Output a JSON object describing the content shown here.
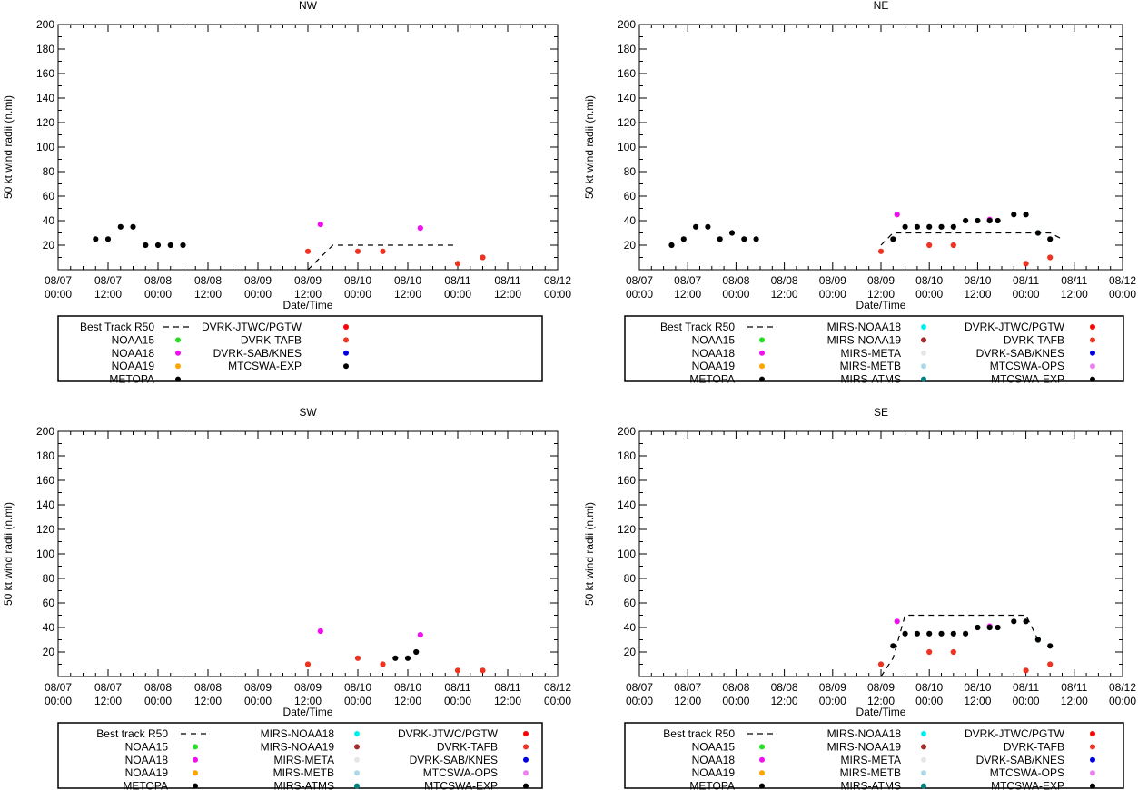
{
  "x_ticks": [
    {
      "date": "08/07",
      "time": "00:00"
    },
    {
      "date": "08/07",
      "time": "12:00"
    },
    {
      "date": "08/08",
      "time": "00:00"
    },
    {
      "date": "08/08",
      "time": "12:00"
    },
    {
      "date": "08/09",
      "time": "00:00"
    },
    {
      "date": "08/09",
      "time": "12:00"
    },
    {
      "date": "08/10",
      "time": "00:00"
    },
    {
      "date": "08/10",
      "time": "12:00"
    },
    {
      "date": "08/11",
      "time": "00:00"
    },
    {
      "date": "08/11",
      "time": "12:00"
    },
    {
      "date": "08/12",
      "time": "00:00"
    }
  ],
  "y_ticks": [
    20,
    40,
    60,
    80,
    100,
    120,
    140,
    160,
    180,
    200
  ],
  "chart_data": [
    {
      "type": "scatter",
      "title": "NW",
      "xlabel": "Date/Time",
      "ylabel": "50 kt wind radii (n.mi)",
      "xlim": [
        0,
        120
      ],
      "ylim": [
        0,
        200
      ],
      "legend_layout": "two-column",
      "legend": [
        {
          "label": "Best Track R50",
          "kind": "dash",
          "color": "#000000"
        },
        {
          "label": "NOAA15",
          "kind": "dot",
          "color": "#22dd22"
        },
        {
          "label": "NOAA18",
          "kind": "dot",
          "color": "#ee11ee"
        },
        {
          "label": "NOAA19",
          "kind": "dot",
          "color": "#ffa500"
        },
        {
          "label": "METOPA",
          "kind": "dot",
          "color": "#000000"
        },
        {
          "label": "DVRK-JTWC/PGTW",
          "kind": "dot",
          "color": "#ff0000"
        },
        {
          "label": "DVRK-TAFB",
          "kind": "dot",
          "color": "#ee3322"
        },
        {
          "label": "DVRK-SAB/KNES",
          "kind": "dot",
          "color": "#0000dd"
        },
        {
          "label": "MTCSWA-EXP",
          "kind": "dot",
          "color": "#000000"
        }
      ],
      "best_track": [
        [
          60,
          0
        ],
        [
          66,
          20
        ],
        [
          96,
          20
        ]
      ],
      "series": [
        {
          "name": "NOAA18",
          "color": "#ee11ee",
          "points": [
            [
              63,
              37
            ],
            [
              87,
              34
            ]
          ]
        },
        {
          "name": "DVRK-TAFB",
          "color": "#ee3322",
          "points": [
            [
              60,
              15
            ],
            [
              72,
              15
            ],
            [
              78,
              15
            ],
            [
              96,
              5
            ],
            [
              102,
              10
            ]
          ]
        },
        {
          "name": "METOPA",
          "color": "#000000",
          "points": [
            [
              9,
              25
            ],
            [
              12,
              25
            ],
            [
              15,
              35
            ],
            [
              18,
              35
            ],
            [
              21,
              20
            ],
            [
              24,
              20
            ],
            [
              27,
              20
            ],
            [
              30,
              20
            ]
          ]
        }
      ]
    },
    {
      "type": "scatter",
      "title": "NE",
      "xlabel": "Date/Time",
      "ylabel": "50 kt wind radii (n.mi)",
      "xlim": [
        0,
        120
      ],
      "ylim": [
        0,
        200
      ],
      "legend_layout": "three-column",
      "legend": [
        {
          "label": "Best Track R50",
          "kind": "dash",
          "color": "#000000"
        },
        {
          "label": "NOAA15",
          "kind": "dot",
          "color": "#22dd22"
        },
        {
          "label": "NOAA18",
          "kind": "dot",
          "color": "#ee11ee"
        },
        {
          "label": "NOAA19",
          "kind": "dot",
          "color": "#ffa500"
        },
        {
          "label": "METOPA",
          "kind": "dot",
          "color": "#000000"
        },
        {
          "label": "MIRS-NOAA18",
          "kind": "dot",
          "color": "#00eeee"
        },
        {
          "label": "MIRS-NOAA19",
          "kind": "dot",
          "color": "#a52a2a"
        },
        {
          "label": "MIRS-META",
          "kind": "dot",
          "color": "#e6e6e6"
        },
        {
          "label": "MIRS-METB",
          "kind": "dot",
          "color": "#add8e6"
        },
        {
          "label": "MIRS-ATMS",
          "kind": "dot",
          "color": "#008080"
        },
        {
          "label": "DVRK-JTWC/PGTW",
          "kind": "dot",
          "color": "#ff0000"
        },
        {
          "label": "DVRK-TAFB",
          "kind": "dot",
          "color": "#ee3322"
        },
        {
          "label": "DVRK-SAB/KNES",
          "kind": "dot",
          "color": "#0000dd"
        },
        {
          "label": "MTCSWA-OPS",
          "kind": "dot",
          "color": "#ee82ee"
        },
        {
          "label": "MTCSWA-EXP",
          "kind": "dot",
          "color": "#000000"
        }
      ],
      "best_track": [
        [
          60,
          20
        ],
        [
          63,
          30
        ],
        [
          102,
          30
        ],
        [
          105,
          25
        ]
      ],
      "series": [
        {
          "name": "NOAA15",
          "color": "#22dd22",
          "points": [
            [
              99,
              30
            ]
          ]
        },
        {
          "name": "NOAA18",
          "color": "#ee11ee",
          "points": [
            [
              64,
              45
            ],
            [
              87,
              41
            ]
          ]
        },
        {
          "name": "DVRK-TAFB",
          "color": "#ee3322",
          "points": [
            [
              60,
              15
            ],
            [
              72,
              20
            ],
            [
              78,
              20
            ],
            [
              96,
              5
            ],
            [
              102,
              10
            ]
          ]
        },
        {
          "name": "METOPA",
          "color": "#000000",
          "points": [
            [
              8,
              20
            ],
            [
              11,
              25
            ],
            [
              14,
              35
            ],
            [
              17,
              35
            ],
            [
              20,
              25
            ],
            [
              23,
              30
            ],
            [
              26,
              25
            ],
            [
              29,
              25
            ]
          ]
        },
        {
          "name": "MTCSWA-EXP",
          "color": "#000000",
          "points": [
            [
              63,
              25
            ],
            [
              66,
              35
            ],
            [
              69,
              35
            ],
            [
              72,
              35
            ],
            [
              75,
              35
            ],
            [
              78,
              35
            ],
            [
              81,
              40
            ],
            [
              84,
              40
            ],
            [
              87,
              40
            ],
            [
              89,
              40
            ],
            [
              93,
              45
            ],
            [
              96,
              45
            ],
            [
              99,
              30
            ],
            [
              102,
              25
            ]
          ]
        }
      ]
    },
    {
      "type": "scatter",
      "title": "SW",
      "xlabel": "Date/Time",
      "ylabel": "50 kt wind radii (n.mi)",
      "xlim": [
        0,
        120
      ],
      "ylim": [
        0,
        200
      ],
      "legend_layout": "three-column",
      "legend": [
        {
          "label": "Best track R50",
          "kind": "dash",
          "color": "#000000"
        },
        {
          "label": "NOAA15",
          "kind": "dot",
          "color": "#22dd22"
        },
        {
          "label": "NOAA18",
          "kind": "dot",
          "color": "#ee11ee"
        },
        {
          "label": "NOAA19",
          "kind": "dot",
          "color": "#ffa500"
        },
        {
          "label": "METOPA",
          "kind": "dot",
          "color": "#000000"
        },
        {
          "label": "MIRS-NOAA18",
          "kind": "dot",
          "color": "#00eeee"
        },
        {
          "label": "MIRS-NOAA19",
          "kind": "dot",
          "color": "#a52a2a"
        },
        {
          "label": "MIRS-META",
          "kind": "dot",
          "color": "#e6e6e6"
        },
        {
          "label": "MIRS-METB",
          "kind": "dot",
          "color": "#add8e6"
        },
        {
          "label": "MIRS-ATMS",
          "kind": "dot",
          "color": "#008080"
        },
        {
          "label": "DVRK-JTWC/PGTW",
          "kind": "dot",
          "color": "#ff0000"
        },
        {
          "label": "DVRK-TAFB",
          "kind": "dot",
          "color": "#ee3322"
        },
        {
          "label": "DVRK-SAB/KNES",
          "kind": "dot",
          "color": "#0000dd"
        },
        {
          "label": "MTCSWA-OPS",
          "kind": "dot",
          "color": "#ee82ee"
        },
        {
          "label": "MTCSWA-EXP",
          "kind": "dot",
          "color": "#000000"
        }
      ],
      "best_track": [],
      "series": [
        {
          "name": "NOAA18",
          "color": "#ee11ee",
          "points": [
            [
              63,
              37
            ],
            [
              87,
              34
            ]
          ]
        },
        {
          "name": "DVRK-TAFB",
          "color": "#ee3322",
          "points": [
            [
              60,
              10
            ],
            [
              72,
              15
            ],
            [
              78,
              10
            ],
            [
              96,
              5
            ],
            [
              102,
              5
            ]
          ]
        },
        {
          "name": "MTCSWA-EXP",
          "color": "#000000",
          "points": [
            [
              81,
              15
            ],
            [
              84,
              15
            ],
            [
              86,
              20
            ]
          ]
        }
      ]
    },
    {
      "type": "scatter",
      "title": "SE",
      "xlabel": "Date/Time",
      "ylabel": "50 kt wind radii (n.mi)",
      "xlim": [
        0,
        120
      ],
      "ylim": [
        0,
        200
      ],
      "legend_layout": "three-column",
      "legend": [
        {
          "label": "Best track R50",
          "kind": "dash",
          "color": "#000000"
        },
        {
          "label": "NOAA15",
          "kind": "dot",
          "color": "#22dd22"
        },
        {
          "label": "NOAA18",
          "kind": "dot",
          "color": "#ee11ee"
        },
        {
          "label": "NOAA19",
          "kind": "dot",
          "color": "#ffa500"
        },
        {
          "label": "METOPA",
          "kind": "dot",
          "color": "#000000"
        },
        {
          "label": "MIRS-NOAA18",
          "kind": "dot",
          "color": "#00eeee"
        },
        {
          "label": "MIRS-NOAA19",
          "kind": "dot",
          "color": "#a52a2a"
        },
        {
          "label": "MIRS-META",
          "kind": "dot",
          "color": "#e6e6e6"
        },
        {
          "label": "MIRS-METB",
          "kind": "dot",
          "color": "#add8e6"
        },
        {
          "label": "MIRS-ATMS",
          "kind": "dot",
          "color": "#008080"
        },
        {
          "label": "DVRK-JTWC/PGTW",
          "kind": "dot",
          "color": "#ff0000"
        },
        {
          "label": "DVRK-TAFB",
          "kind": "dot",
          "color": "#ee3322"
        },
        {
          "label": "DVRK-SAB/KNES",
          "kind": "dot",
          "color": "#0000dd"
        },
        {
          "label": "MTCSWA-OPS",
          "kind": "dot",
          "color": "#ee82ee"
        },
        {
          "label": "MTCSWA-EXP",
          "kind": "dot",
          "color": "#000000"
        }
      ],
      "best_track": [
        [
          60,
          0
        ],
        [
          63,
          15
        ],
        [
          66,
          50
        ],
        [
          96,
          50
        ],
        [
          99,
          30
        ]
      ],
      "series": [
        {
          "name": "NOAA15",
          "color": "#22dd22",
          "points": [
            [
              99,
              30
            ]
          ]
        },
        {
          "name": "NOAA18",
          "color": "#ee11ee",
          "points": [
            [
              64,
              45
            ],
            [
              87,
              41
            ]
          ]
        },
        {
          "name": "DVRK-TAFB",
          "color": "#ee3322",
          "points": [
            [
              60,
              10
            ],
            [
              72,
              20
            ],
            [
              78,
              20
            ],
            [
              96,
              5
            ],
            [
              102,
              10
            ]
          ]
        },
        {
          "name": "MTCSWA-EXP",
          "color": "#000000",
          "points": [
            [
              63,
              25
            ],
            [
              66,
              35
            ],
            [
              69,
              35
            ],
            [
              72,
              35
            ],
            [
              75,
              35
            ],
            [
              78,
              35
            ],
            [
              81,
              35
            ],
            [
              84,
              40
            ],
            [
              87,
              40
            ],
            [
              89,
              40
            ],
            [
              93,
              45
            ],
            [
              96,
              45
            ],
            [
              99,
              30
            ],
            [
              102,
              25
            ]
          ]
        }
      ]
    }
  ]
}
